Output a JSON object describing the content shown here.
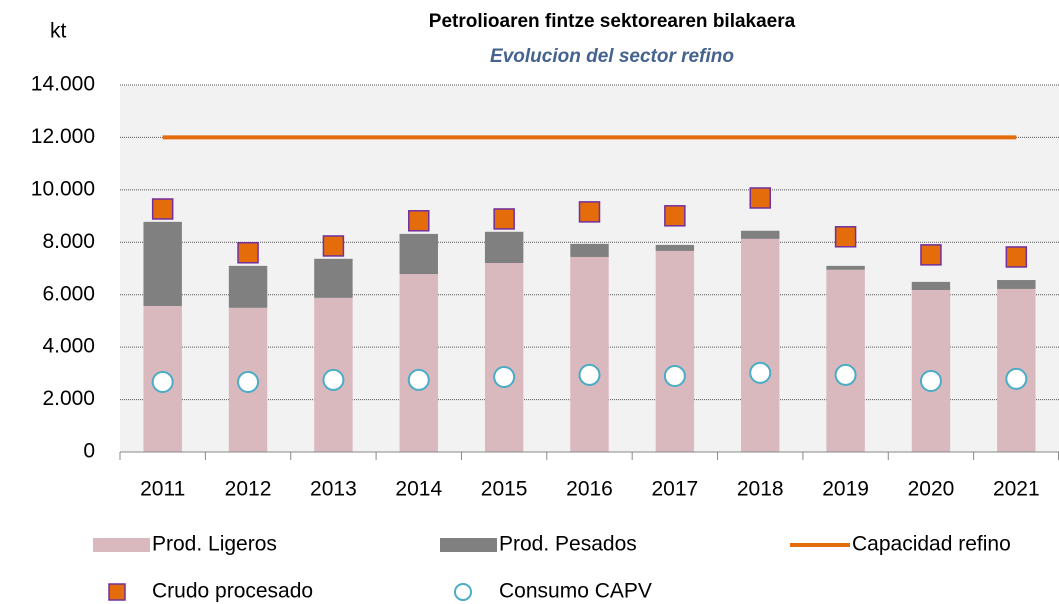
{
  "chart_data": {
    "type": "combo",
    "title": "Petrolioaren fintze sektorearen bilakaera",
    "subtitle": "Evolucion del sector refino",
    "y_label": "kt",
    "categories": [
      "2011",
      "2012",
      "2013",
      "2014",
      "2015",
      "2016",
      "2017",
      "2018",
      "2019",
      "2020",
      "2021"
    ],
    "series": [
      {
        "name": "Prod. Ligeros",
        "type": "stacked-bar",
        "color": "#d9b8be",
        "values": [
          5570,
          5500,
          5880,
          6790,
          7210,
          7440,
          7670,
          8130,
          6950,
          6180,
          6220
        ]
      },
      {
        "name": "Prod. Pesados",
        "type": "stacked-bar",
        "color": "#808080",
        "values": [
          3210,
          1600,
          1490,
          1530,
          1190,
          500,
          230,
          310,
          150,
          310,
          340
        ]
      },
      {
        "name": "Capacidad refino",
        "type": "line",
        "color": "#e46c0a",
        "values": [
          12000,
          12000,
          12000,
          12000,
          12000,
          12000,
          12000,
          12000,
          12000,
          12000,
          12000
        ]
      },
      {
        "name": "Crudo procesado",
        "type": "square",
        "color": "#e46c0a",
        "values": [
          9270,
          7600,
          7860,
          8820,
          8890,
          9160,
          9010,
          9690,
          8210,
          7520,
          7440
        ]
      },
      {
        "name": "Consumo CAPV",
        "type": "circle",
        "color": "#4bacc6",
        "values": [
          2670,
          2670,
          2750,
          2750,
          2860,
          2940,
          2900,
          3020,
          2940,
          2710,
          2790
        ]
      }
    ],
    "ylim": [
      0,
      14000
    ],
    "yticks": [
      0,
      {
        "value": 2000,
        "label": "2.000"
      },
      {
        "value": 4000,
        "label": "4.000"
      },
      {
        "value": 6000,
        "label": "6.000"
      },
      {
        "value": 8000,
        "label": "8.000"
      },
      {
        "value": 10000,
        "label": "10.000"
      },
      {
        "value": 12000,
        "label": "12.000"
      },
      {
        "value": 14000,
        "label": "14.000"
      }
    ],
    "grid": true
  }
}
